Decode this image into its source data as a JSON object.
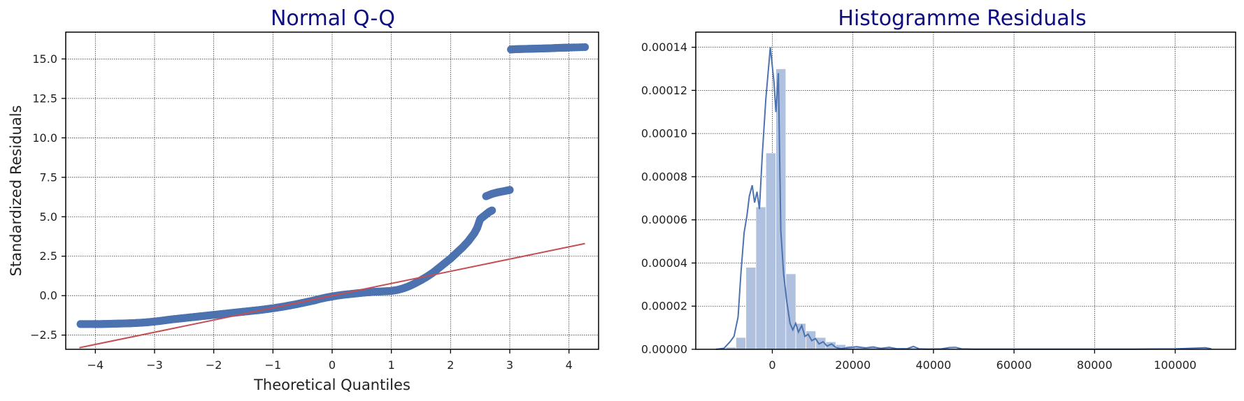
{
  "colors": {
    "title": "#0d0d80",
    "points": "#4c72b0",
    "reference_line": "#c44e52",
    "hist_bars": "#afc1de",
    "kde": "#4c72b0",
    "grid": "#333333",
    "frame": "#000000"
  },
  "chart_data": [
    {
      "type": "scatter",
      "title": "Normal Q-Q",
      "xlabel": "Theoretical Quantiles",
      "ylabel": "Standardized Residuals",
      "xlim": [
        -4.5,
        4.5
      ],
      "ylim": [
        -3.4,
        16.7
      ],
      "grid": true,
      "x_ticks": [
        -4,
        -3,
        -2,
        -1,
        0,
        1,
        2,
        3,
        4
      ],
      "x_tick_labels": [
        "−4",
        "−3",
        "−2",
        "−1",
        "0",
        "1",
        "2",
        "3",
        "4"
      ],
      "y_ticks": [
        -2.5,
        0,
        2.5,
        5,
        7.5,
        10,
        12.5,
        15
      ],
      "y_tick_labels": [
        "−2.5",
        "0.0",
        "2.5",
        "5.0",
        "7.5",
        "10.0",
        "12.5",
        "15.0"
      ],
      "series": [
        {
          "points": [
            [
              -4.25,
              -1.8
            ],
            [
              -4.05,
              -1.8
            ],
            [
              -3.9,
              -1.8
            ],
            [
              -3.8,
              -1.79
            ],
            [
              -3.7,
              -1.78
            ],
            [
              -3.6,
              -1.77
            ],
            [
              -3.5,
              -1.76
            ],
            [
              -3.4,
              -1.75
            ],
            [
              -3.3,
              -1.73
            ],
            [
              -3.2,
              -1.71
            ],
            [
              -3.1,
              -1.68
            ],
            [
              -3.0,
              -1.64
            ],
            [
              -2.9,
              -1.6
            ],
            [
              -2.8,
              -1.55
            ],
            [
              -2.7,
              -1.5
            ],
            [
              -2.6,
              -1.46
            ],
            [
              -2.5,
              -1.42
            ],
            [
              -2.4,
              -1.38
            ],
            [
              -2.3,
              -1.34
            ],
            [
              -2.2,
              -1.3
            ],
            [
              -2.1,
              -1.26
            ],
            [
              -2.0,
              -1.22
            ],
            [
              -1.9,
              -1.18
            ],
            [
              -1.8,
              -1.14
            ],
            [
              -1.7,
              -1.1
            ],
            [
              -1.6,
              -1.06
            ],
            [
              -1.5,
              -1.02
            ],
            [
              -1.4,
              -0.98
            ],
            [
              -1.3,
              -0.94
            ],
            [
              -1.2,
              -0.9
            ],
            [
              -1.1,
              -0.85
            ],
            [
              -1.0,
              -0.8
            ],
            [
              -0.9,
              -0.74
            ],
            [
              -0.8,
              -0.68
            ],
            [
              -0.7,
              -0.61
            ],
            [
              -0.6,
              -0.54
            ],
            [
              -0.5,
              -0.46
            ],
            [
              -0.4,
              -0.38
            ],
            [
              -0.3,
              -0.3
            ],
            [
              -0.2,
              -0.2
            ],
            [
              -0.1,
              -0.12
            ],
            [
              0.0,
              -0.05
            ],
            [
              0.1,
              0.01
            ],
            [
              0.2,
              0.06
            ],
            [
              0.3,
              0.1
            ],
            [
              0.4,
              0.14
            ],
            [
              0.5,
              0.18
            ],
            [
              0.6,
              0.21
            ],
            [
              0.7,
              0.24
            ],
            [
              0.8,
              0.26
            ],
            [
              0.9,
              0.28
            ],
            [
              1.0,
              0.3
            ],
            [
              1.1,
              0.36
            ],
            [
              1.2,
              0.46
            ],
            [
              1.3,
              0.6
            ],
            [
              1.4,
              0.78
            ],
            [
              1.5,
              0.98
            ],
            [
              1.6,
              1.2
            ],
            [
              1.7,
              1.45
            ],
            [
              1.8,
              1.75
            ],
            [
              1.9,
              2.05
            ],
            [
              2.0,
              2.35
            ],
            [
              2.1,
              2.7
            ],
            [
              2.2,
              3.05
            ],
            [
              2.3,
              3.45
            ],
            [
              2.4,
              3.95
            ],
            [
              2.45,
              4.3
            ],
            [
              2.5,
              4.85
            ],
            [
              2.55,
              5.0
            ],
            [
              2.6,
              5.15
            ],
            [
              2.65,
              5.3
            ],
            [
              2.7,
              5.4
            ],
            [
              2.6,
              6.3
            ],
            [
              2.7,
              6.45
            ],
            [
              2.8,
              6.55
            ],
            [
              2.9,
              6.62
            ],
            [
              3.0,
              6.7
            ],
            [
              3.02,
              15.6
            ],
            [
              3.1,
              15.62
            ],
            [
              3.2,
              15.63
            ],
            [
              3.3,
              15.64
            ],
            [
              3.4,
              15.65
            ],
            [
              3.5,
              15.66
            ],
            [
              3.6,
              15.67
            ],
            [
              3.7,
              15.68
            ],
            [
              3.8,
              15.7
            ],
            [
              3.9,
              15.71
            ],
            [
              4.0,
              15.72
            ],
            [
              4.27,
              15.75
            ]
          ]
        },
        {
          "line": [
            [
              -4.27,
              -3.3
            ],
            [
              4.27,
              3.3
            ]
          ]
        }
      ]
    },
    {
      "type": "bar",
      "title": "Histogramme Residuals",
      "xlabel": "",
      "ylabel": "",
      "xlim": [
        -19000,
        115000
      ],
      "ylim": [
        0,
        0.000147
      ],
      "grid": true,
      "x_ticks": [
        0,
        20000,
        40000,
        60000,
        80000,
        100000
      ],
      "x_tick_labels": [
        "0",
        "20000",
        "40000",
        "60000",
        "80000",
        "100000"
      ],
      "y_ticks": [
        0,
        2e-05,
        4e-05,
        6e-05,
        8e-05,
        0.0001,
        0.00012,
        0.00014
      ],
      "y_tick_labels": [
        "0.00000",
        "0.00002",
        "0.00004",
        "0.00006",
        "0.00008",
        "0.00010",
        "0.00012",
        "0.00014"
      ],
      "bin_width": 2480,
      "bin_starts": [
        -14000,
        -11520,
        -9040,
        -6560,
        -4080,
        -1600,
        880,
        3360,
        5840,
        8320,
        10800,
        13280,
        15760,
        18240,
        20720,
        23200,
        25680,
        28160,
        30640,
        33120,
        35600,
        38080,
        40560,
        43040,
        45520,
        48000,
        50480,
        52960,
        55440,
        57920,
        60400,
        62880,
        65360,
        67840,
        70320,
        72800,
        75280,
        77760,
        80240,
        82720,
        85200,
        87680,
        90160,
        92640,
        95120,
        97600,
        100080,
        102560,
        105040,
        107520
      ],
      "bar_heights": [
        3e-07,
        1e-06,
        5.5e-06,
        3.8e-05,
        6.6e-05,
        9.1e-05,
        0.00013,
        3.5e-05,
        1.2e-05,
        8.5e-06,
        5.5e-06,
        3.5e-06,
        2.2e-06,
        1.5e-06,
        1.3e-06,
        1.1e-06,
        1e-06,
        9e-07,
        8e-07,
        7e-07,
        6e-07,
        5e-07,
        4e-07,
        4e-07,
        3e-07,
        3e-07,
        2e-07,
        2e-07,
        2e-07,
        2e-07,
        2e-07,
        2e-07,
        2e-07,
        2e-07,
        2e-07,
        2e-07,
        2e-07,
        2e-07,
        2e-07,
        2e-07,
        2e-07,
        2e-07,
        2e-07,
        2e-07,
        2e-07,
        2e-07,
        2e-07,
        2e-07,
        2e-07,
        2e-07
      ],
      "kde": [
        [
          -14000,
          0
        ],
        [
          -12000,
          5e-07
        ],
        [
          -10500,
          3.5e-06
        ],
        [
          -9500,
          6e-06
        ],
        [
          -8500,
          1.5e-05
        ],
        [
          -7800,
          3.5e-05
        ],
        [
          -7000,
          5.4e-05
        ],
        [
          -6300,
          6.2e-05
        ],
        [
          -5700,
          7.1e-05
        ],
        [
          -5000,
          7.6e-05
        ],
        [
          -4400,
          6.8e-05
        ],
        [
          -3800,
          7.3e-05
        ],
        [
          -3200,
          6.5e-05
        ],
        [
          -2500,
          9e-05
        ],
        [
          -1600,
          0.000116
        ],
        [
          -500,
          0.00014
        ],
        [
          400,
          0.000124
        ],
        [
          900,
          0.00011
        ],
        [
          1500,
          0.000128
        ],
        [
          2100,
          5.5e-05
        ],
        [
          2800,
          3.5e-05
        ],
        [
          3600,
          2.2e-05
        ],
        [
          4400,
          1.2e-05
        ],
        [
          5100,
          9e-06
        ],
        [
          5800,
          1.2e-05
        ],
        [
          6500,
          8e-06
        ],
        [
          7300,
          1.1e-05
        ],
        [
          8100,
          6e-06
        ],
        [
          8900,
          7e-06
        ],
        [
          9800,
          4e-06
        ],
        [
          10700,
          5e-06
        ],
        [
          11600,
          2.5e-06
        ],
        [
          12600,
          3.5e-06
        ],
        [
          13600,
          1.5e-06
        ],
        [
          14700,
          2.5e-06
        ],
        [
          15800,
          8e-07
        ],
        [
          17000,
          3e-07
        ],
        [
          19000,
          8e-07
        ],
        [
          21000,
          1.2e-06
        ],
        [
          23000,
          6e-07
        ],
        [
          25000,
          1.1e-06
        ],
        [
          27000,
          4e-07
        ],
        [
          29000,
          9e-07
        ],
        [
          31000,
          2e-07
        ],
        [
          33500,
          3e-07
        ],
        [
          35000,
          1.3e-06
        ],
        [
          36500,
          2e-07
        ],
        [
          38500,
          1e-07
        ],
        [
          42000,
          2e-07
        ],
        [
          44000,
          8e-07
        ],
        [
          45500,
          9e-07
        ],
        [
          47000,
          2e-07
        ],
        [
          50000,
          1e-07
        ],
        [
          60000,
          1e-07
        ],
        [
          70000,
          1e-07
        ],
        [
          80000,
          1e-07
        ],
        [
          90000,
          1e-07
        ],
        [
          100000,
          2e-07
        ],
        [
          106000,
          6e-07
        ],
        [
          107500,
          7e-07
        ],
        [
          109000,
          2e-07
        ]
      ]
    }
  ]
}
